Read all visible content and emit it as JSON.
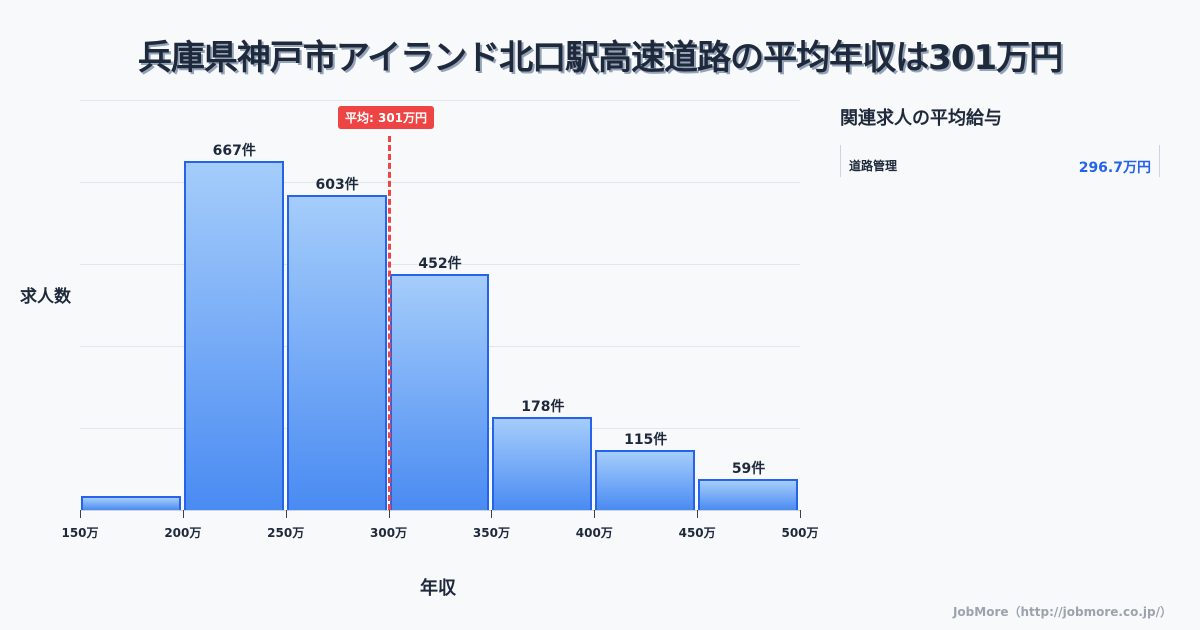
{
  "title": "兵庫県神戸市アイランド北口駅高速道路の平均年収は301万円",
  "chart_data": {
    "type": "bar",
    "title": "兵庫県神戸市アイランド北口駅高速道路の平均年収は301万円",
    "xlabel": "年収",
    "ylabel": "求人数",
    "x_ticks": [
      "150万",
      "200万",
      "250万",
      "300万",
      "350万",
      "400万",
      "450万",
      "500万"
    ],
    "categories": [
      "150-200万",
      "200-250万",
      "250-300万",
      "300-350万",
      "350-400万",
      "400-450万",
      "450-500万"
    ],
    "values": [
      27,
      667,
      603,
      452,
      178,
      115,
      59
    ],
    "value_labels": [
      "",
      "667件",
      "603件",
      "452件",
      "178件",
      "115件",
      "59件"
    ],
    "ylim": [
      0,
      784
    ],
    "grid": true,
    "average": {
      "value": 301,
      "label": "平均: 301万円"
    }
  },
  "axes": {
    "ylabel": "求人数",
    "xlabel": "年収"
  },
  "sidebar": {
    "title": "関連求人の平均給与",
    "items": [
      {
        "name": "道路管理",
        "value": "296.7万円"
      }
    ]
  },
  "footer": "JobMore（http://jobmore.co.jp/）"
}
